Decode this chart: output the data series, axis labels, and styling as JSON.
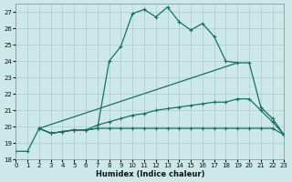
{
  "xlabel": "Humidex (Indice chaleur)",
  "background_color": "#cce8e8",
  "grid_color": "#aacccc",
  "line_color": "#1a7060",
  "xlim": [
    0,
    23
  ],
  "ylim": [
    18,
    27.5
  ],
  "xticks": [
    0,
    1,
    2,
    3,
    4,
    5,
    6,
    7,
    8,
    9,
    10,
    11,
    12,
    13,
    14,
    15,
    16,
    17,
    18,
    19,
    20,
    21,
    22,
    23
  ],
  "yticks": [
    18,
    19,
    20,
    21,
    22,
    23,
    24,
    25,
    26,
    27
  ],
  "line1_x": [
    0,
    1,
    2,
    3,
    4,
    5,
    6,
    7,
    8,
    9,
    10,
    11,
    12,
    13,
    14,
    15,
    16,
    17,
    18,
    19,
    20,
    21,
    22,
    23
  ],
  "line1_y": [
    18.5,
    18.5,
    19.9,
    19.6,
    19.7,
    19.8,
    19.8,
    19.9,
    19.9,
    19.9,
    19.9,
    19.9,
    19.9,
    19.9,
    19.9,
    19.9,
    19.9,
    19.9,
    19.9,
    19.9,
    19.9,
    19.9,
    19.9,
    19.5
  ],
  "line2_x": [
    2,
    3,
    4,
    5,
    6,
    7,
    8,
    9,
    10,
    11,
    12,
    13,
    14,
    15,
    16,
    17,
    18,
    19,
    20,
    21,
    22,
    23
  ],
  "line2_y": [
    19.9,
    19.6,
    19.7,
    19.8,
    19.8,
    19.9,
    24.0,
    24.9,
    26.9,
    27.15,
    26.7,
    27.3,
    26.4,
    25.9,
    26.3,
    25.5,
    24.0,
    23.9,
    23.9,
    21.2,
    20.5,
    19.5
  ],
  "line3_x": [
    2,
    19
  ],
  "line3_y": [
    19.9,
    23.9
  ],
  "line4_x": [
    2,
    3,
    4,
    5,
    6,
    7,
    8,
    9,
    10,
    11,
    12,
    13,
    14,
    15,
    16,
    17,
    18,
    19,
    20,
    21,
    22,
    23
  ],
  "line4_y": [
    19.9,
    19.6,
    19.7,
    19.8,
    19.8,
    20.1,
    20.3,
    20.5,
    20.7,
    20.8,
    21.0,
    21.1,
    21.2,
    21.3,
    21.4,
    21.5,
    21.5,
    21.7,
    21.7,
    21.0,
    20.3,
    19.5
  ]
}
